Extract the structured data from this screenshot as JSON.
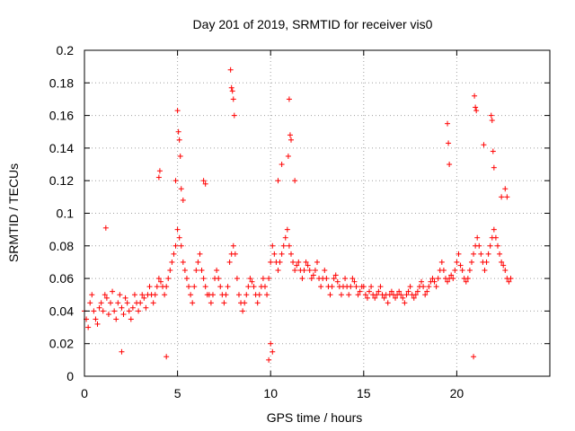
{
  "chart_data": {
    "type": "scatter",
    "title": "Day 201 of 2019, SRMTID for receiver vis0",
    "xlabel": "GPS time / hours",
    "ylabel": "SRMTID / TECUs",
    "xlim": [
      0,
      25
    ],
    "ylim": [
      0,
      0.2
    ],
    "xticks": [
      0,
      5,
      10,
      15,
      20
    ],
    "xtick_labels": [
      "0",
      "5",
      "10",
      "15",
      "20"
    ],
    "yticks": [
      0,
      0.02,
      0.04,
      0.06,
      0.08,
      0.1,
      0.12,
      0.14,
      0.16,
      0.18,
      0.2
    ],
    "ytick_labels": [
      "0",
      "0.02",
      "0.04",
      "0.06",
      "0.08",
      "0.1",
      "0.12",
      "0.14",
      "0.16",
      "0.18",
      "0.2"
    ],
    "grid": true,
    "marker": "plus",
    "series": [
      {
        "name": "vis0",
        "color": "#ff0000",
        "x": [
          0.0,
          0.1,
          0.2,
          0.3,
          0.4,
          0.5,
          0.6,
          0.7,
          0.8,
          0.9,
          1.0,
          1.1,
          1.2,
          1.3,
          1.4,
          1.5,
          1.6,
          1.7,
          1.8,
          1.9,
          2.0,
          2.1,
          2.2,
          2.3,
          2.4,
          2.5,
          2.6,
          2.7,
          2.8,
          2.9,
          3.0,
          3.1,
          3.2,
          3.3,
          3.4,
          3.5,
          3.6,
          3.7,
          3.8,
          3.9,
          4.0,
          4.1,
          4.2,
          4.3,
          4.4,
          4.5,
          4.6,
          4.7,
          4.8,
          4.9,
          5.0,
          5.1,
          5.2,
          5.3,
          5.4,
          5.5,
          5.6,
          5.7,
          5.8,
          5.9,
          6.0,
          6.1,
          6.2,
          6.3,
          6.4,
          6.5,
          6.6,
          6.7,
          6.8,
          6.9,
          7.0,
          7.1,
          7.2,
          7.3,
          7.4,
          7.5,
          7.6,
          7.7,
          7.8,
          7.9,
          8.0,
          8.1,
          8.2,
          8.3,
          8.4,
          8.5,
          8.6,
          8.7,
          8.8,
          8.9,
          9.0,
          9.1,
          9.2,
          9.3,
          9.4,
          9.5,
          9.6,
          9.7,
          9.8,
          9.9,
          10.0,
          10.1,
          10.2,
          10.3,
          10.4,
          10.5,
          10.6,
          10.7,
          10.8,
          10.9,
          11.0,
          11.1,
          11.2,
          11.3,
          11.4,
          11.5,
          11.6,
          11.7,
          11.8,
          11.9,
          12.0,
          12.1,
          12.2,
          12.3,
          12.4,
          12.5,
          12.6,
          12.7,
          12.8,
          12.9,
          13.0,
          13.1,
          13.2,
          13.3,
          13.4,
          13.5,
          13.6,
          13.7,
          13.8,
          13.9,
          14.0,
          14.1,
          14.2,
          14.3,
          14.4,
          14.5,
          14.6,
          14.7,
          14.8,
          14.9,
          15.0,
          15.1,
          15.2,
          15.3,
          15.4,
          15.5,
          15.6,
          15.7,
          15.8,
          15.9,
          16.0,
          16.1,
          16.2,
          16.3,
          16.4,
          16.5,
          16.6,
          16.7,
          16.8,
          16.9,
          17.0,
          17.1,
          17.2,
          17.3,
          17.4,
          17.5,
          17.6,
          17.7,
          17.8,
          17.9,
          18.0,
          18.1,
          18.2,
          18.3,
          18.4,
          18.5,
          18.6,
          18.7,
          18.8,
          18.9,
          19.0,
          19.1,
          19.2,
          19.3,
          19.4,
          19.5,
          19.6,
          19.7,
          19.8,
          19.9,
          20.0,
          20.1,
          20.2,
          20.3,
          20.4,
          20.5,
          20.6,
          20.7,
          20.8,
          20.9,
          21.0,
          21.1,
          21.2,
          21.3,
          21.4,
          21.5,
          21.6,
          21.7,
          21.8,
          21.9,
          22.0,
          22.1,
          22.2,
          22.3,
          22.4,
          22.5,
          22.6,
          22.7,
          22.8,
          22.9,
          1.15,
          4.0,
          4.05,
          4.9,
          5.0,
          5.05,
          5.1,
          5.15,
          5.2,
          5.3,
          6.4,
          6.5,
          7.85,
          7.9,
          7.95,
          8.0,
          8.05,
          10.4,
          10.6,
          10.95,
          11.0,
          11.05,
          11.1,
          11.3,
          19.5,
          19.55,
          19.6,
          20.95,
          21.0,
          21.05,
          21.45,
          21.85,
          21.9,
          21.95,
          22.0,
          22.4,
          22.6,
          22.7,
          9.9,
          10.1,
          10.0,
          4.4,
          20.9,
          2.0
        ],
        "y": [
          0.04,
          0.035,
          0.03,
          0.045,
          0.05,
          0.04,
          0.035,
          0.032,
          0.042,
          0.045,
          0.04,
          0.05,
          0.048,
          0.038,
          0.045,
          0.052,
          0.04,
          0.035,
          0.045,
          0.05,
          0.042,
          0.038,
          0.048,
          0.045,
          0.04,
          0.035,
          0.042,
          0.05,
          0.045,
          0.04,
          0.045,
          0.05,
          0.048,
          0.042,
          0.05,
          0.055,
          0.05,
          0.045,
          0.05,
          0.055,
          0.06,
          0.058,
          0.055,
          0.05,
          0.055,
          0.06,
          0.065,
          0.07,
          0.075,
          0.08,
          0.09,
          0.085,
          0.08,
          0.07,
          0.065,
          0.06,
          0.055,
          0.05,
          0.045,
          0.055,
          0.065,
          0.07,
          0.075,
          0.065,
          0.06,
          0.055,
          0.05,
          0.05,
          0.045,
          0.05,
          0.06,
          0.065,
          0.06,
          0.055,
          0.05,
          0.045,
          0.05,
          0.055,
          0.07,
          0.075,
          0.08,
          0.075,
          0.06,
          0.05,
          0.045,
          0.04,
          0.045,
          0.05,
          0.055,
          0.06,
          0.058,
          0.055,
          0.05,
          0.045,
          0.05,
          0.055,
          0.06,
          0.055,
          0.05,
          0.06,
          0.07,
          0.08,
          0.075,
          0.07,
          0.065,
          0.07,
          0.075,
          0.08,
          0.085,
          0.09,
          0.08,
          0.075,
          0.07,
          0.065,
          0.068,
          0.07,
          0.065,
          0.06,
          0.065,
          0.07,
          0.068,
          0.065,
          0.06,
          0.062,
          0.065,
          0.07,
          0.06,
          0.055,
          0.06,
          0.065,
          0.06,
          0.055,
          0.05,
          0.055,
          0.06,
          0.062,
          0.058,
          0.055,
          0.05,
          0.055,
          0.06,
          0.055,
          0.05,
          0.055,
          0.06,
          0.058,
          0.055,
          0.05,
          0.052,
          0.055,
          0.055,
          0.05,
          0.048,
          0.052,
          0.055,
          0.05,
          0.048,
          0.05,
          0.052,
          0.055,
          0.05,
          0.048,
          0.05,
          0.045,
          0.05,
          0.052,
          0.05,
          0.048,
          0.05,
          0.052,
          0.05,
          0.048,
          0.045,
          0.05,
          0.052,
          0.055,
          0.05,
          0.048,
          0.05,
          0.052,
          0.055,
          0.058,
          0.055,
          0.05,
          0.052,
          0.055,
          0.058,
          0.06,
          0.058,
          0.055,
          0.06,
          0.065,
          0.07,
          0.065,
          0.06,
          0.058,
          0.06,
          0.062,
          0.06,
          0.065,
          0.07,
          0.075,
          0.068,
          0.065,
          0.06,
          0.058,
          0.06,
          0.065,
          0.07,
          0.075,
          0.08,
          0.085,
          0.08,
          0.075,
          0.07,
          0.065,
          0.07,
          0.075,
          0.08,
          0.085,
          0.09,
          0.085,
          0.08,
          0.075,
          0.07,
          0.068,
          0.065,
          0.06,
          0.058,
          0.06,
          0.091,
          0.122,
          0.126,
          0.12,
          0.163,
          0.15,
          0.145,
          0.135,
          0.115,
          0.108,
          0.12,
          0.118,
          0.188,
          0.177,
          0.175,
          0.17,
          0.16,
          0.12,
          0.13,
          0.135,
          0.17,
          0.148,
          0.145,
          0.12,
          0.155,
          0.143,
          0.13,
          0.172,
          0.165,
          0.163,
          0.142,
          0.16,
          0.157,
          0.138,
          0.128,
          0.11,
          0.115,
          0.11,
          0.01,
          0.015,
          0.02,
          0.012,
          0.012,
          0.015
        ]
      }
    ]
  }
}
